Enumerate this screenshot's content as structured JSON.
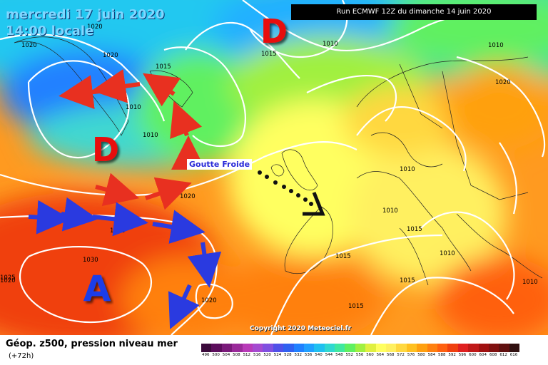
{
  "title": {
    "date": "mercredi 17 juin 2020",
    "time": "14:00 locale"
  },
  "run_info": "Run ECMWF 12Z du dimanche 14 juin 2020",
  "annotation": "Goutte Froide",
  "copyright": "Copyright 2020 Meteociel.fr",
  "legend": {
    "title": "Géop. z500, pression niveau mer",
    "lead": "(+72h)",
    "scale_values": [
      "496",
      "500",
      "504",
      "508",
      "512",
      "516",
      "520",
      "524",
      "528",
      "532",
      "536",
      "540",
      "544",
      "548",
      "552",
      "556",
      "560",
      "564",
      "568",
      "572",
      "576",
      "580",
      "584",
      "588",
      "592",
      "596",
      "600",
      "604",
      "608",
      "612",
      "616"
    ],
    "scale_colors": [
      "#3b0a3b",
      "#5c0d5c",
      "#7a1a7a",
      "#9a2a9a",
      "#b83ab8",
      "#a54ad0",
      "#8050e0",
      "#5050e8",
      "#3060f0",
      "#2080ff",
      "#20a0ff",
      "#20c0f0",
      "#30d8d0",
      "#40e8a0",
      "#60f060",
      "#a0f040",
      "#e0f040",
      "#ffff60",
      "#fff060",
      "#ffd840",
      "#ffc020",
      "#ffa010",
      "#ff8010",
      "#ff6010",
      "#f04010",
      "#e02020",
      "#c01818",
      "#a01010",
      "#801010",
      "#601010",
      "#301010"
    ]
  },
  "systems": [
    {
      "symbol": "D",
      "kind": "low",
      "color": "#e81010"
    },
    {
      "symbol": "D",
      "kind": "low",
      "color": "#e81010"
    },
    {
      "symbol": "A",
      "kind": "high",
      "color": "#1a3ce8"
    }
  ],
  "isobar_labels": [
    "1020",
    "1020",
    "1020",
    "1015",
    "1010",
    "1010",
    "1015",
    "1010",
    "1010",
    "1020",
    "1020",
    "1025",
    "1030",
    "1025",
    "1020",
    "1015",
    "1015",
    "1015",
    "1010",
    "1010",
    "1015",
    "1010",
    "1020",
    "1010"
  ]
}
